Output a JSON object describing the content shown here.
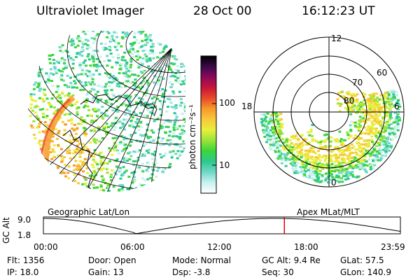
{
  "header": {
    "title": "Ultraviolet Imager",
    "date": "28 Oct 00",
    "time": "16:12:23 UT"
  },
  "left_panel": {
    "caption": "Geographic Lat/Lon"
  },
  "right_panel": {
    "caption": "Apex MLat/MLT",
    "mlt_labels": [
      "12",
      "18",
      "6",
      "0"
    ],
    "mlat_labels": [
      "60",
      "70",
      "80"
    ]
  },
  "colorbar": {
    "unit_label": "photon cm⁻²s⁻¹",
    "tick_labels": [
      "100",
      "10"
    ],
    "scale": "log",
    "colors": [
      "#ffffff",
      "#c9f0f0",
      "#6fd9c9",
      "#2dc88c",
      "#3bd53b",
      "#9be33a",
      "#e8ef3a",
      "#f8c83a",
      "#f79a2a",
      "#e84a2a",
      "#c8143a",
      "#8a0a5a",
      "#3a0a4a",
      "#000000"
    ]
  },
  "altitude_plot": {
    "ylabel": "GC Alt",
    "yticks": [
      "9.0",
      "1.8"
    ],
    "xticks": [
      "00:00",
      "06:00",
      "12:00",
      "18:00",
      "23:59"
    ],
    "marker_color": "#e00000",
    "current_time_hours": 16.2
  },
  "info": {
    "row1": [
      {
        "k": "Flt:",
        "v": "1356"
      },
      {
        "k": "Door:",
        "v": "Open"
      },
      {
        "k": "Mode:",
        "v": "Normal"
      },
      {
        "k": "GC Alt:",
        "v": "9.4 Re"
      },
      {
        "k": "GLat:",
        "v": "57.5"
      }
    ],
    "row2": [
      {
        "k": "IP:",
        "v": "18.0"
      },
      {
        "k": "Gain:",
        "v": "13"
      },
      {
        "k": "Dsp:",
        "v": "-3.8"
      },
      {
        "k": "Seq:",
        "v": "30"
      },
      {
        "k": "GLon:",
        "v": "140.9"
      }
    ]
  }
}
